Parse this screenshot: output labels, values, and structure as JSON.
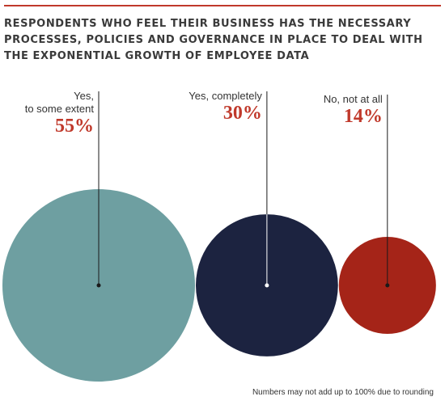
{
  "chart_data": {
    "type": "bubble",
    "title_lines": [
      "RESPONDENTS WHO FEEL THEIR BUSINESS HAS THE NECESSARY",
      "PROCESSES, POLICIES AND GOVERNANCE IN PLACE TO DEAL WITH",
      "THE EXPONENTIAL GROWTH OF EMPLOYEE DATA"
    ],
    "categories": [
      {
        "label_lines": [
          "Yes,",
          "to some extent"
        ],
        "value": 55,
        "value_label": "55%",
        "color": "#6e9fa1"
      },
      {
        "label_lines": [
          "Yes, completely"
        ],
        "value": 30,
        "value_label": "30%",
        "color": "#1c2340"
      },
      {
        "label_lines": [
          "No, not at all"
        ],
        "value": 14,
        "value_label": "14%",
        "color": "#a52418"
      }
    ],
    "footnote": "Numbers may not add up to 100% due to rounding",
    "accent_color": "#c0392b"
  }
}
